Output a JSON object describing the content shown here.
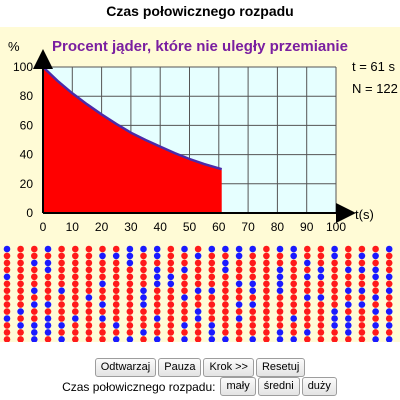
{
  "app": {
    "title": "Czas połowicznego rozpadu"
  },
  "chart_data": {
    "type": "area",
    "title": "Procent jąder, które nie uległy przemianie",
    "ylabel": "%",
    "xlabel": "t(s)",
    "xlim": [
      0,
      100
    ],
    "ylim": [
      0,
      100
    ],
    "x_ticks": [
      0,
      10,
      20,
      30,
      40,
      50,
      60,
      70,
      80,
      90,
      100
    ],
    "y_ticks": [
      0,
      20,
      40,
      60,
      80,
      100
    ],
    "series": [
      {
        "x": [
          0,
          5,
          10,
          15,
          20,
          25,
          30,
          35,
          40,
          45,
          50,
          55,
          61
        ],
        "values": [
          100,
          90.5,
          82,
          74.5,
          67.5,
          61,
          55,
          50,
          45.5,
          41,
          37,
          33.5,
          30
        ]
      }
    ],
    "fill_color": "#ff0000",
    "curve_color": "#4b2aa8",
    "title_color": "#7a1fa0",
    "plot_bg": "#e6ffff",
    "grid": true
  },
  "readouts": {
    "time": "t = 61 s",
    "count": "N = 122"
  },
  "atoms": {
    "rows": 14,
    "cols": 29,
    "undecayed_color": "#1a1aff",
    "decayed_color": "#ff1a1a",
    "undecayed_count": 122
  },
  "controls": {
    "play": "Odtwarzaj",
    "pause": "Pauza",
    "step": "Krok >>",
    "reset": "Resetuj",
    "half_life_label": "Czas połowicznego rozpadu:",
    "small": "mały",
    "medium": "średni",
    "large": "duży"
  }
}
